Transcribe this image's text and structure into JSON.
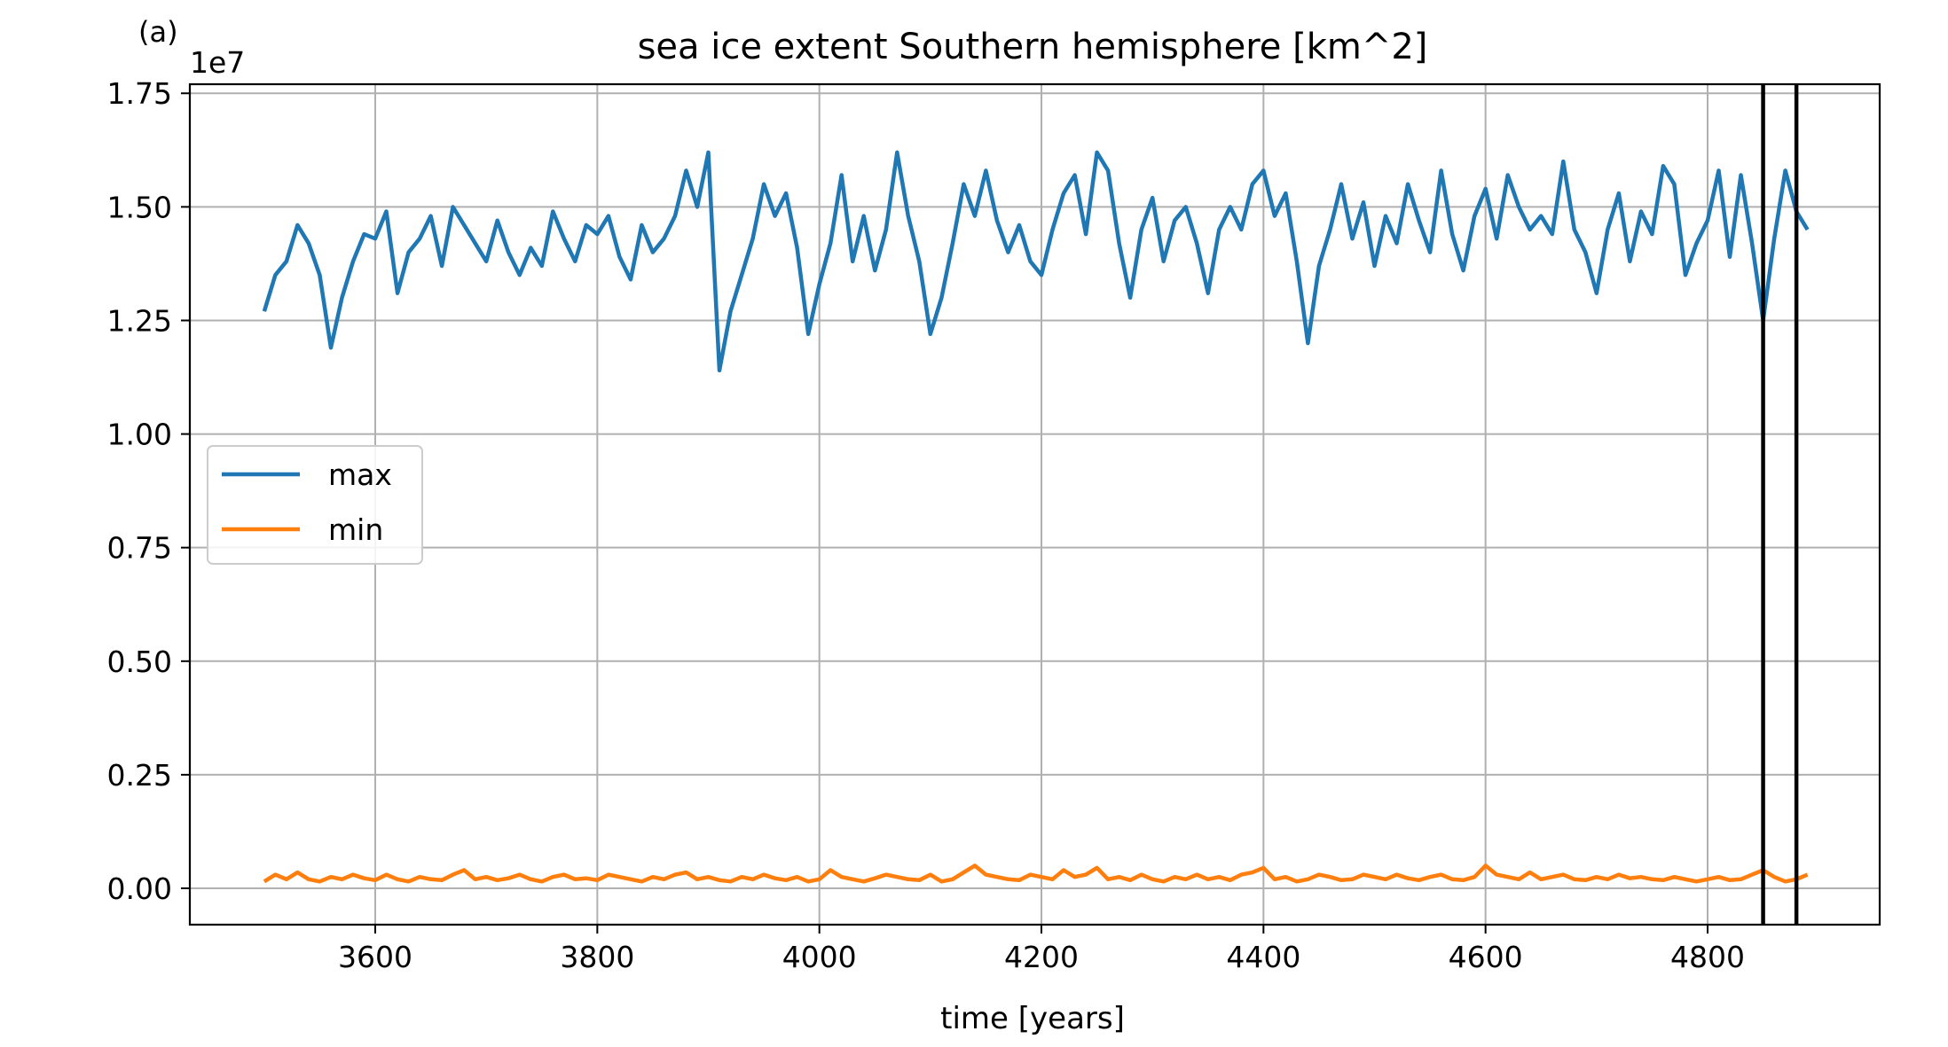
{
  "chart_data": {
    "type": "line",
    "panel_label": "(a)",
    "title": "sea ice extent Southern hemisphere [km^2]",
    "xlabel": "time [years]",
    "ylabel": "",
    "y_offset_text": "1e7",
    "y_scale_factor": 10000000,
    "xlim": [
      3433,
      4955
    ],
    "ylim": [
      -0.08,
      1.77
    ],
    "xticks": [
      3600,
      3800,
      4000,
      4200,
      4400,
      4600,
      4800
    ],
    "xtick_labels": [
      "3600",
      "3800",
      "4000",
      "4200",
      "4400",
      "4600",
      "4800"
    ],
    "yticks": [
      0.0,
      0.25,
      0.5,
      0.75,
      1.0,
      1.25,
      1.5,
      1.75
    ],
    "ytick_labels": [
      "0.00",
      "0.25",
      "0.50",
      "0.75",
      "1.00",
      "1.25",
      "1.50",
      "1.75"
    ],
    "grid": true,
    "legend_position": "center-left",
    "vertical_lines": [
      4850,
      4880
    ],
    "vline_color": "#000000",
    "series": [
      {
        "name": "max",
        "color": "#1f77b4",
        "x": [
          3500,
          3510,
          3520,
          3530,
          3540,
          3550,
          3560,
          3570,
          3580,
          3590,
          3600,
          3610,
          3620,
          3630,
          3640,
          3650,
          3660,
          3670,
          3680,
          3690,
          3700,
          3710,
          3720,
          3730,
          3740,
          3750,
          3760,
          3770,
          3780,
          3790,
          3800,
          3810,
          3820,
          3830,
          3840,
          3850,
          3860,
          3870,
          3880,
          3890,
          3900,
          3910,
          3920,
          3930,
          3940,
          3950,
          3960,
          3970,
          3980,
          3990,
          4000,
          4010,
          4020,
          4030,
          4040,
          4050,
          4060,
          4070,
          4080,
          4090,
          4100,
          4110,
          4120,
          4130,
          4140,
          4150,
          4160,
          4170,
          4180,
          4190,
          4200,
          4210,
          4220,
          4230,
          4240,
          4250,
          4260,
          4270,
          4280,
          4290,
          4300,
          4310,
          4320,
          4330,
          4340,
          4350,
          4360,
          4370,
          4380,
          4390,
          4400,
          4410,
          4420,
          4430,
          4440,
          4450,
          4460,
          4470,
          4480,
          4490,
          4500,
          4510,
          4520,
          4530,
          4540,
          4550,
          4560,
          4570,
          4580,
          4590,
          4600,
          4610,
          4620,
          4630,
          4640,
          4650,
          4660,
          4670,
          4680,
          4690,
          4700,
          4710,
          4720,
          4730,
          4740,
          4750,
          4760,
          4770,
          4780,
          4790,
          4800,
          4810,
          4820,
          4830,
          4840,
          4850,
          4860,
          4870,
          4880,
          4890
        ],
        "values": [
          1.27,
          1.35,
          1.38,
          1.46,
          1.42,
          1.35,
          1.19,
          1.3,
          1.38,
          1.44,
          1.43,
          1.49,
          1.31,
          1.4,
          1.43,
          1.48,
          1.37,
          1.5,
          1.46,
          1.42,
          1.38,
          1.47,
          1.4,
          1.35,
          1.41,
          1.37,
          1.49,
          1.43,
          1.38,
          1.46,
          1.44,
          1.48,
          1.39,
          1.34,
          1.46,
          1.4,
          1.43,
          1.48,
          1.58,
          1.5,
          1.62,
          1.14,
          1.27,
          1.35,
          1.43,
          1.55,
          1.48,
          1.53,
          1.41,
          1.22,
          1.33,
          1.42,
          1.57,
          1.38,
          1.48,
          1.36,
          1.45,
          1.62,
          1.48,
          1.38,
          1.22,
          1.3,
          1.42,
          1.55,
          1.48,
          1.58,
          1.47,
          1.4,
          1.46,
          1.38,
          1.35,
          1.45,
          1.53,
          1.57,
          1.44,
          1.62,
          1.58,
          1.42,
          1.3,
          1.45,
          1.52,
          1.38,
          1.47,
          1.5,
          1.42,
          1.31,
          1.45,
          1.5,
          1.45,
          1.55,
          1.58,
          1.48,
          1.53,
          1.38,
          1.2,
          1.37,
          1.45,
          1.55,
          1.43,
          1.51,
          1.37,
          1.48,
          1.42,
          1.55,
          1.47,
          1.4,
          1.58,
          1.44,
          1.36,
          1.48,
          1.54,
          1.43,
          1.57,
          1.5,
          1.45,
          1.48,
          1.44,
          1.6,
          1.45,
          1.4,
          1.31,
          1.45,
          1.53,
          1.38,
          1.49,
          1.44,
          1.59,
          1.55,
          1.35,
          1.42,
          1.47,
          1.58,
          1.39,
          1.57,
          1.42,
          1.25,
          1.43,
          1.58,
          1.49,
          1.45
        ]
      },
      {
        "name": "min",
        "color": "#ff7f0e",
        "x": [
          3500,
          3510,
          3520,
          3530,
          3540,
          3550,
          3560,
          3570,
          3580,
          3590,
          3600,
          3610,
          3620,
          3630,
          3640,
          3650,
          3660,
          3670,
          3680,
          3690,
          3700,
          3710,
          3720,
          3730,
          3740,
          3750,
          3760,
          3770,
          3780,
          3790,
          3800,
          3810,
          3820,
          3830,
          3840,
          3850,
          3860,
          3870,
          3880,
          3890,
          3900,
          3910,
          3920,
          3930,
          3940,
          3950,
          3960,
          3970,
          3980,
          3990,
          4000,
          4010,
          4020,
          4030,
          4040,
          4050,
          4060,
          4070,
          4080,
          4090,
          4100,
          4110,
          4120,
          4130,
          4140,
          4150,
          4160,
          4170,
          4180,
          4190,
          4200,
          4210,
          4220,
          4230,
          4240,
          4250,
          4260,
          4270,
          4280,
          4290,
          4300,
          4310,
          4320,
          4330,
          4340,
          4350,
          4360,
          4370,
          4380,
          4390,
          4400,
          4410,
          4420,
          4430,
          4440,
          4450,
          4460,
          4470,
          4480,
          4490,
          4500,
          4510,
          4520,
          4530,
          4540,
          4550,
          4560,
          4570,
          4580,
          4590,
          4600,
          4610,
          4620,
          4630,
          4640,
          4650,
          4660,
          4670,
          4680,
          4690,
          4700,
          4710,
          4720,
          4730,
          4740,
          4750,
          4760,
          4770,
          4780,
          4790,
          4800,
          4810,
          4820,
          4830,
          4840,
          4850,
          4860,
          4870,
          4880,
          4890
        ],
        "values": [
          0.015,
          0.03,
          0.02,
          0.035,
          0.02,
          0.015,
          0.025,
          0.02,
          0.03,
          0.022,
          0.018,
          0.03,
          0.02,
          0.015,
          0.025,
          0.02,
          0.018,
          0.03,
          0.04,
          0.02,
          0.025,
          0.018,
          0.022,
          0.03,
          0.02,
          0.015,
          0.025,
          0.03,
          0.02,
          0.022,
          0.018,
          0.03,
          0.025,
          0.02,
          0.015,
          0.025,
          0.02,
          0.03,
          0.035,
          0.02,
          0.025,
          0.018,
          0.015,
          0.025,
          0.02,
          0.03,
          0.022,
          0.018,
          0.025,
          0.015,
          0.02,
          0.04,
          0.025,
          0.02,
          0.015,
          0.022,
          0.03,
          0.025,
          0.02,
          0.018,
          0.03,
          0.015,
          0.02,
          0.035,
          0.05,
          0.03,
          0.025,
          0.02,
          0.018,
          0.03,
          0.025,
          0.02,
          0.04,
          0.025,
          0.03,
          0.045,
          0.02,
          0.025,
          0.018,
          0.03,
          0.02,
          0.015,
          0.025,
          0.02,
          0.03,
          0.02,
          0.025,
          0.018,
          0.03,
          0.035,
          0.045,
          0.02,
          0.025,
          0.015,
          0.02,
          0.03,
          0.025,
          0.018,
          0.02,
          0.03,
          0.025,
          0.02,
          0.03,
          0.022,
          0.018,
          0.025,
          0.03,
          0.02,
          0.018,
          0.025,
          0.05,
          0.03,
          0.025,
          0.02,
          0.035,
          0.02,
          0.025,
          0.03,
          0.02,
          0.018,
          0.025,
          0.02,
          0.03,
          0.022,
          0.025,
          0.02,
          0.018,
          0.025,
          0.02,
          0.015,
          0.02,
          0.025,
          0.018,
          0.02,
          0.03,
          0.04,
          0.025,
          0.015,
          0.02,
          0.03
        ]
      }
    ]
  }
}
